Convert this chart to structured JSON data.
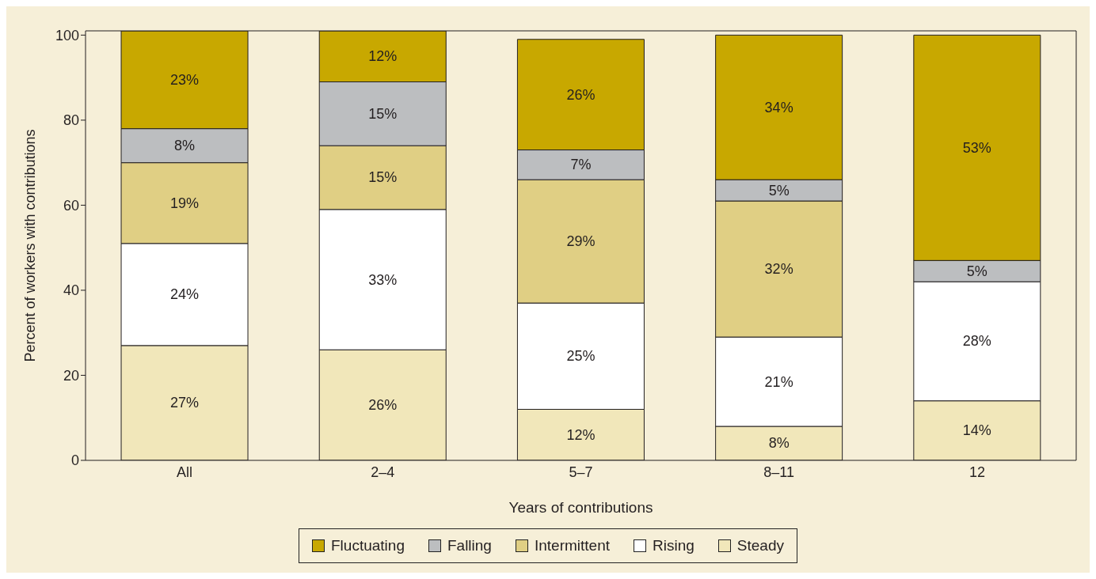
{
  "chart_data": {
    "type": "bar",
    "stacked": true,
    "xlabel": "Years of contributions",
    "ylabel": "Percent of workers with contributions",
    "categories": [
      "All",
      "2–4",
      "5–7",
      "8–11",
      "12"
    ],
    "series": [
      {
        "name": "Steady",
        "color": "#f1e7ba",
        "values": [
          27,
          26,
          12,
          8,
          14
        ],
        "value_labels": [
          "27%",
          "26%",
          "12%",
          "8%",
          "14%"
        ]
      },
      {
        "name": "Rising",
        "color": "#ffffff",
        "values": [
          24,
          33,
          25,
          21,
          28
        ],
        "value_labels": [
          "24%",
          "33%",
          "25%",
          "21%",
          "28%"
        ]
      },
      {
        "name": "Intermittent",
        "color": "#e0cf84",
        "values": [
          19,
          15,
          29,
          32,
          null
        ],
        "value_labels": [
          "19%",
          "15%",
          "29%",
          "32%",
          null
        ]
      },
      {
        "name": "Falling",
        "color": "#bcbec0",
        "values": [
          8,
          15,
          7,
          5,
          5
        ],
        "value_labels": [
          "8%",
          "15%",
          "7%",
          "5%",
          "5%"
        ]
      },
      {
        "name": "Fluctuating",
        "color": "#c8a800",
        "values": [
          23,
          12,
          26,
          34,
          53
        ],
        "value_labels": [
          "23%",
          "12%",
          "26%",
          "34%",
          "53%"
        ]
      }
    ],
    "ylim": [
      0,
      101
    ],
    "yticks": [
      0,
      20,
      40,
      60,
      80,
      100
    ],
    "legend": "bottom"
  }
}
